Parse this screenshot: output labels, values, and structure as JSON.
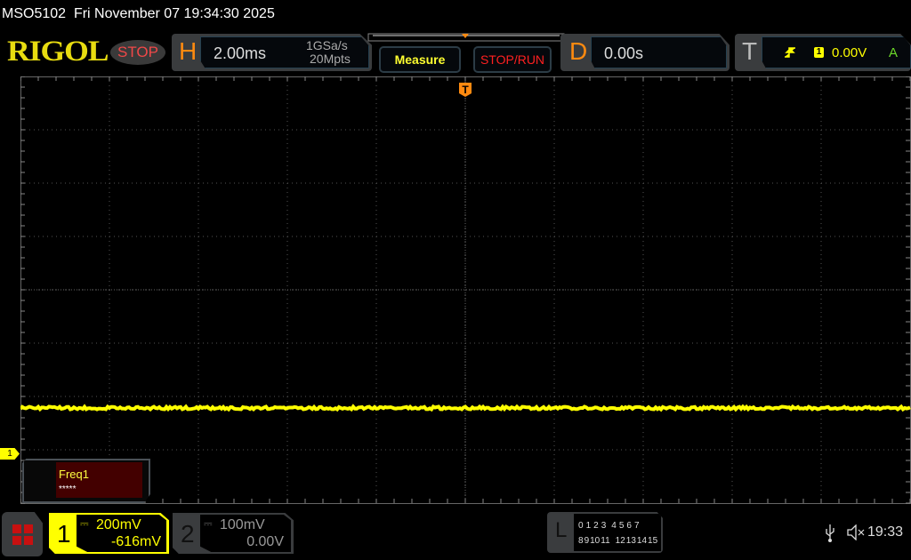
{
  "titlebar": {
    "model": "MSO5102",
    "datetime": "Fri November 07 19:34:30 2025"
  },
  "logo": "RIGOL",
  "run_status": "STOP",
  "horizontal": {
    "letter": "H",
    "timebase": "2.00ms",
    "sample_rate": "1GSa/s",
    "memory_depth": "20Mpts"
  },
  "buttons": {
    "measure": "Measure",
    "stop_run": "STOP/RUN"
  },
  "delay": {
    "letter": "D",
    "value": "0.00s"
  },
  "trigger": {
    "letter": "T",
    "source": "1",
    "level": "0.00V",
    "mode": "A",
    "slope_icon": "rising-edge-icon",
    "marker": "T"
  },
  "channel_marker": "1",
  "measurement": {
    "name": "Freq1",
    "value": "*****"
  },
  "channels": [
    {
      "number": "1",
      "scale": "200mV",
      "offset": "-616mV",
      "coupling_icon": "dc-coupling-icon",
      "color": "#ffff00"
    },
    {
      "number": "2",
      "scale": "100mV",
      "offset": "0.00V",
      "coupling_icon": "dc-coupling-icon",
      "color": "#9a9a9a"
    }
  ],
  "logic": {
    "letter": "L",
    "row1": [
      "0",
      "1",
      "2",
      "3",
      "4",
      "5",
      "6",
      "7"
    ],
    "row2": [
      "8",
      "9",
      "10",
      "11",
      "12",
      "13",
      "14",
      "15"
    ]
  },
  "status": {
    "usb_icon": "usb-icon",
    "sound_icon": "speaker-muted-icon",
    "clock": "19:33"
  },
  "trace": {
    "channel": "1",
    "level_divisions_above_marker": 0.85,
    "color": "#ffff00"
  },
  "colors": {
    "accent": "#ff8a10",
    "channel1": "#ffff00",
    "stop": "#f04848"
  }
}
